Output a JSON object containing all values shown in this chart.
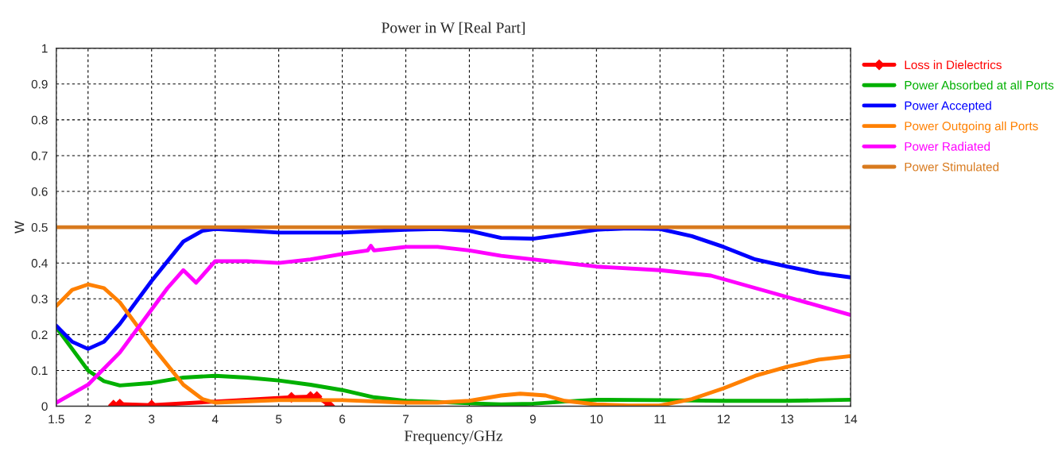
{
  "chart_data": {
    "type": "line",
    "title": "Power in W [Real Part]",
    "xlabel": "Frequency/GHz",
    "ylabel": "W",
    "xlim": [
      1.5,
      14
    ],
    "xticks": [
      1.5,
      2,
      3,
      4,
      5,
      6,
      7,
      8,
      9,
      10,
      11,
      12,
      13,
      14
    ],
    "ylim": [
      0,
      1
    ],
    "yticks": [
      0,
      0.1,
      0.2,
      0.3,
      0.4,
      0.5,
      0.6,
      0.7,
      0.8,
      0.9,
      1
    ],
    "grid": true,
    "legend": "top right",
    "line_style": "solid",
    "series": [
      {
        "name": "Loss in Dielectrics",
        "color": "#ff0000",
        "marker": "diamond",
        "x": [
          2.4,
          2.5,
          3.0,
          5.2,
          5.5,
          5.6,
          5.8
        ],
        "values": [
          0.003,
          0.006,
          0.003,
          0.025,
          0.027,
          0.027,
          0.002
        ]
      },
      {
        "name": "Power Absorbed at all Ports",
        "color": "#00b000",
        "x": [
          1.5,
          1.75,
          2,
          2.25,
          2.5,
          3,
          3.5,
          4,
          4.5,
          5,
          5.5,
          6,
          6.5,
          7,
          7.5,
          8,
          8.5,
          9,
          9.5,
          10,
          11,
          12,
          13,
          14
        ],
        "values": [
          0.22,
          0.16,
          0.1,
          0.07,
          0.058,
          0.065,
          0.08,
          0.085,
          0.08,
          0.072,
          0.06,
          0.045,
          0.025,
          0.015,
          0.012,
          0.008,
          0.005,
          0.007,
          0.013,
          0.018,
          0.017,
          0.015,
          0.015,
          0.018
        ]
      },
      {
        "name": "Power Accepted",
        "color": "#0000ff",
        "x": [
          1.5,
          1.75,
          2,
          2.25,
          2.5,
          3,
          3.5,
          3.8,
          4,
          5,
          6,
          7,
          7.5,
          8,
          8.5,
          9,
          9.5,
          10,
          10.5,
          11,
          11.5,
          12,
          12.5,
          13,
          13.5,
          14
        ],
        "values": [
          0.225,
          0.18,
          0.16,
          0.18,
          0.23,
          0.35,
          0.46,
          0.49,
          0.495,
          0.485,
          0.485,
          0.493,
          0.495,
          0.49,
          0.47,
          0.468,
          0.48,
          0.493,
          0.497,
          0.495,
          0.475,
          0.445,
          0.41,
          0.39,
          0.372,
          0.36
        ]
      },
      {
        "name": "Power Outgoing all Ports",
        "color": "#ff8000",
        "x": [
          1.5,
          1.75,
          2,
          2.25,
          2.5,
          3,
          3.5,
          3.8,
          4,
          5,
          6,
          7,
          7.5,
          8,
          8.5,
          8.8,
          9.2,
          9.5,
          10,
          10.5,
          11,
          11.5,
          12,
          12.5,
          13,
          13.5,
          14
        ],
        "values": [
          0.28,
          0.325,
          0.34,
          0.33,
          0.29,
          0.17,
          0.06,
          0.02,
          0.01,
          0.017,
          0.017,
          0.01,
          0.01,
          0.015,
          0.03,
          0.035,
          0.03,
          0.015,
          0.005,
          0.002,
          0.002,
          0.02,
          0.05,
          0.085,
          0.11,
          0.13,
          0.14
        ]
      },
      {
        "name": "Power Radiated",
        "color": "#ff00ff",
        "x": [
          1.5,
          2,
          2.5,
          3,
          3.25,
          3.5,
          3.7,
          4,
          4.5,
          5,
          5.5,
          6,
          6.4,
          6.45,
          6.5,
          7,
          7.5,
          8,
          8.5,
          9,
          10,
          11,
          11.8,
          12,
          13,
          14
        ],
        "values": [
          0.01,
          0.06,
          0.15,
          0.27,
          0.33,
          0.38,
          0.345,
          0.405,
          0.405,
          0.4,
          0.41,
          0.425,
          0.435,
          0.448,
          0.435,
          0.445,
          0.445,
          0.435,
          0.42,
          0.41,
          0.39,
          0.38,
          0.365,
          0.355,
          0.305,
          0.255
        ]
      },
      {
        "name": "Power Stimulated",
        "color": "#d87a1e",
        "x": [
          1.5,
          14
        ],
        "values": [
          0.5,
          0.5
        ]
      }
    ]
  }
}
